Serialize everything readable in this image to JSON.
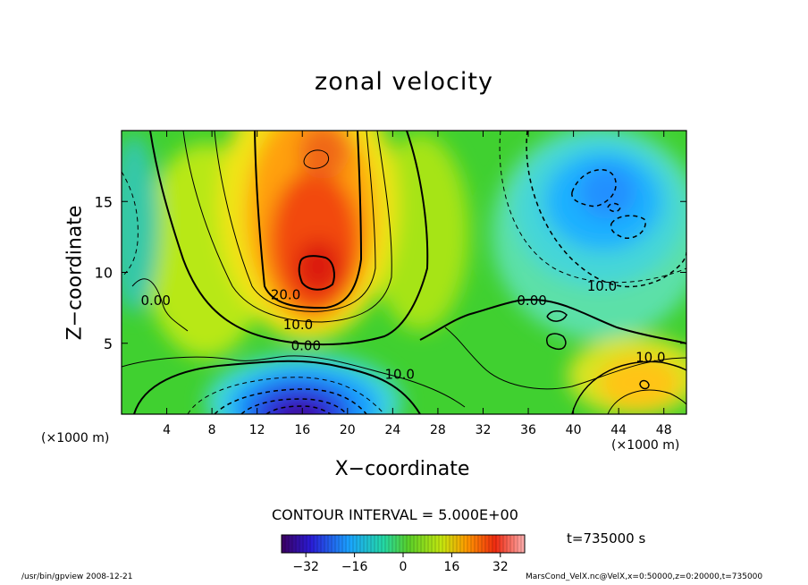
{
  "chart_data": {
    "type": "heatmap",
    "title": "zonal velocity",
    "xlabel": "X−coordinate",
    "ylabel": "Z−coordinate",
    "x_unit_left": "(×1000 m)",
    "x_unit_right": "(×1000 m)",
    "xlim": [
      0,
      50
    ],
    "ylim": [
      0,
      20
    ],
    "x_ticks": [
      4,
      8,
      12,
      16,
      20,
      24,
      28,
      32,
      36,
      40,
      44,
      48
    ],
    "y_ticks": [
      5,
      10,
      15
    ],
    "contour_labels": [
      {
        "text": "20.0",
        "x": 13.2,
        "y": 8.1
      },
      {
        "text": "10.0",
        "x": 14.3,
        "y": 6.0
      },
      {
        "text": "0.00",
        "x": 15.0,
        "y": 4.5
      },
      {
        "text": "10.0",
        "x": 23.3,
        "y": 2.5
      },
      {
        "text": "0.00",
        "x": 35.0,
        "y": 7.7
      },
      {
        "text": "10.0",
        "x": 41.2,
        "y": 8.7
      },
      {
        "text": "10.0",
        "x": 45.5,
        "y": 3.7
      },
      {
        "text": "0.00",
        "x": 1.7,
        "y": 7.7
      }
    ],
    "features": [
      {
        "name": "westerly jet",
        "x": 17,
        "z": 10,
        "value": 25
      },
      {
        "name": "upper westerly",
        "x": 18,
        "z": 18,
        "value": 18
      },
      {
        "name": "low easterly core",
        "x": 17,
        "z": 0,
        "value": -35
      },
      {
        "name": "easterly region",
        "x": 43,
        "z": 14,
        "value": -15
      },
      {
        "name": "surface westerly",
        "x": 45,
        "z": 2,
        "value": 12
      }
    ],
    "colorbar": {
      "min": -40,
      "max": 40,
      "ticks": [
        -32,
        -16,
        0,
        16,
        32
      ]
    },
    "contour_interval_text": "CONTOUR INTERVAL = 5.000E+00",
    "time_text": "t=735000 s"
  },
  "footer": {
    "left": "/usr/bin/gpview   2008-12-21",
    "right": "MarsCond_VelX.nc@VelX,x=0:50000,z=0:20000,t=735000"
  }
}
